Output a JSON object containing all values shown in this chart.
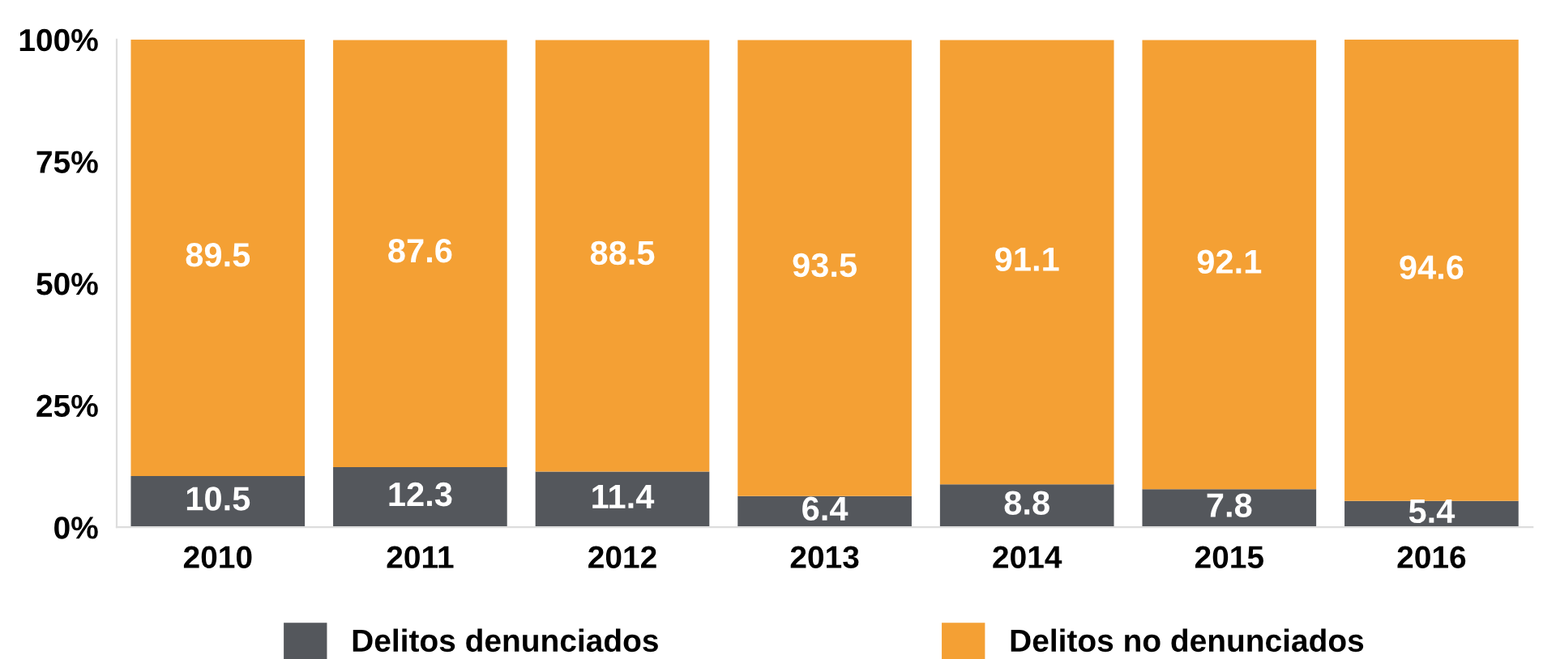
{
  "chart_data": {
    "type": "bar",
    "stacked": true,
    "categories": [
      "2010",
      "2011",
      "2012",
      "2013",
      "2014",
      "2015",
      "2016"
    ],
    "series": [
      {
        "name": "Delitos denunciados",
        "color": "#54575c",
        "values": [
          10.5,
          12.3,
          11.4,
          6.4,
          8.8,
          7.8,
          5.4
        ]
      },
      {
        "name": "Delitos no denunciados",
        "color": "#f4a034",
        "values": [
          89.5,
          87.6,
          88.5,
          93.5,
          91.1,
          92.1,
          94.6
        ]
      }
    ],
    "ylim": [
      0,
      100
    ],
    "yticks": [
      {
        "value": 0,
        "label": "0%"
      },
      {
        "value": 25,
        "label": "25%"
      },
      {
        "value": 50,
        "label": "50%"
      },
      {
        "value": 75,
        "label": "75%"
      },
      {
        "value": 100,
        "label": "100%"
      }
    ],
    "data_labels": true,
    "grid": false,
    "legend": "bottom"
  }
}
